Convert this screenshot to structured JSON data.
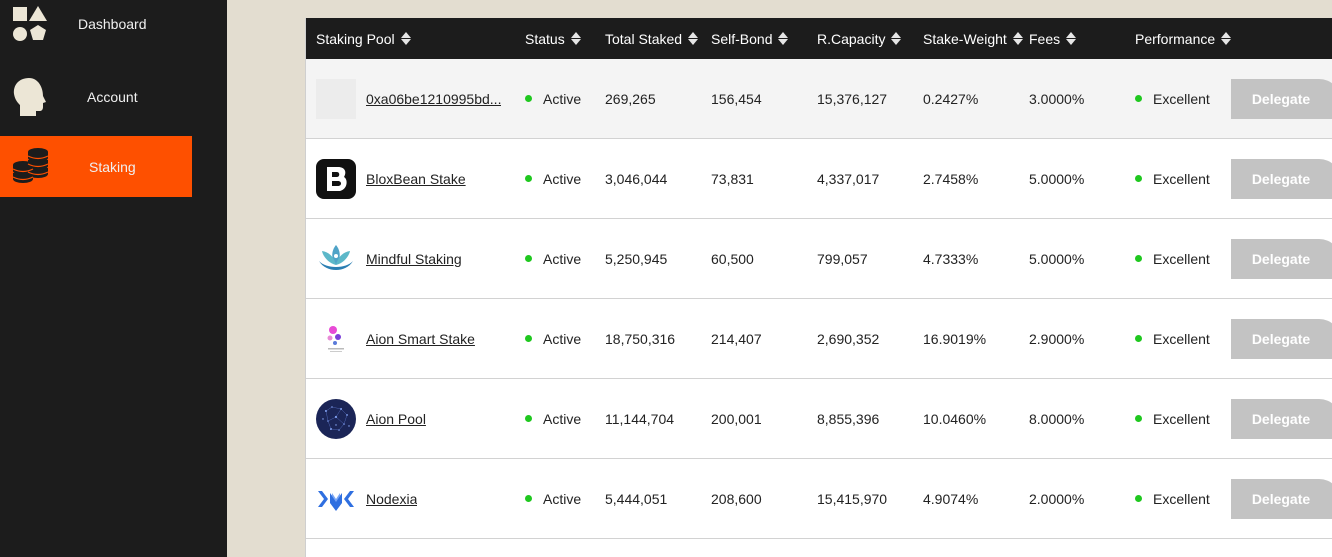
{
  "sidebar": {
    "items": [
      {
        "label": "Dashboard",
        "icon": "shapes-icon",
        "active": false
      },
      {
        "label": "Account",
        "icon": "head-icon",
        "active": false
      },
      {
        "label": "Staking",
        "icon": "coins-icon",
        "active": true
      }
    ]
  },
  "table": {
    "columns": [
      "Staking Pool",
      "Status",
      "Total Staked",
      "Self-Bond",
      "R.Capacity",
      "Stake-Weight",
      "Fees",
      "Performance"
    ],
    "delegate_label": "Delegate",
    "rows": [
      {
        "name": "0xa06be1210995bd...",
        "logo": "placeholder-logo",
        "status": "Active",
        "total_staked": "269,265",
        "self_bond": "156,454",
        "r_capacity": "15,376,127",
        "stake_weight": "0.2427%",
        "fees": "3.0000%",
        "performance": "Excellent"
      },
      {
        "name": "BloxBean Stake",
        "logo": "bloxbean-logo",
        "status": "Active",
        "total_staked": "3,046,044",
        "self_bond": "73,831",
        "r_capacity": "4,337,017",
        "stake_weight": "2.7458%",
        "fees": "5.0000%",
        "performance": "Excellent"
      },
      {
        "name": "Mindful Staking",
        "logo": "lotus-logo",
        "status": "Active",
        "total_staked": "5,250,945",
        "self_bond": "60,500",
        "r_capacity": "799,057",
        "stake_weight": "4.7333%",
        "fees": "5.0000%",
        "performance": "Excellent"
      },
      {
        "name": "Aion Smart Stake",
        "logo": "smart-stake-logo",
        "status": "Active",
        "total_staked": "18,750,316",
        "self_bond": "214,407",
        "r_capacity": "2,690,352",
        "stake_weight": "16.9019%",
        "fees": "2.9000%",
        "performance": "Excellent"
      },
      {
        "name": "Aion Pool",
        "logo": "aion-pool-logo",
        "status": "Active",
        "total_staked": "11,144,704",
        "self_bond": "200,001",
        "r_capacity": "8,855,396",
        "stake_weight": "10.0460%",
        "fees": "8.0000%",
        "performance": "Excellent"
      },
      {
        "name": "Nodexia",
        "logo": "nodexia-logo",
        "status": "Active",
        "total_staked": "5,444,051",
        "self_bond": "208,600",
        "r_capacity": "15,415,970",
        "stake_weight": "4.9074%",
        "fees": "2.0000%",
        "performance": "Excellent"
      }
    ]
  },
  "colors": {
    "sidebar_bg": "#1c1c1c",
    "active_accent": "#fe5000",
    "page_bg": "#e3ddd0",
    "status_green": "#1fc81f",
    "delegate_disabled": "#c3c3c3"
  }
}
